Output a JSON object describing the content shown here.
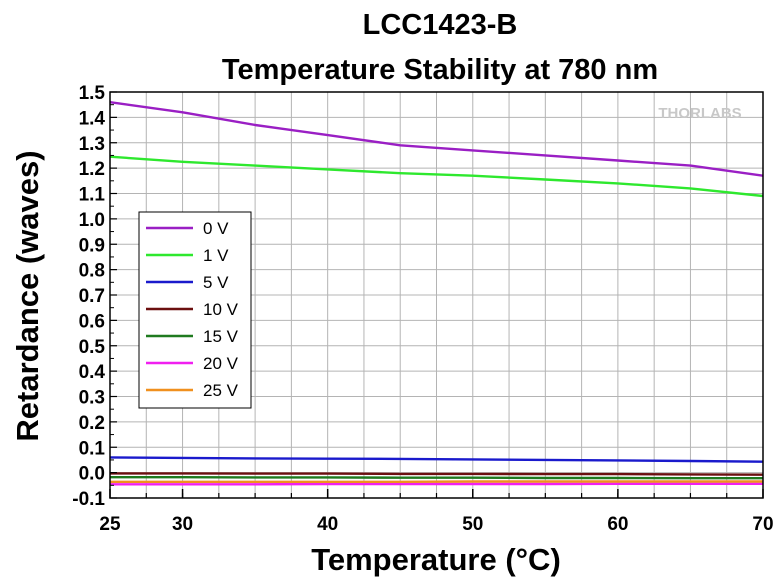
{
  "chart_data": {
    "type": "line",
    "title": "LCC1423-B",
    "subtitle": "Temperature Stability at 780 nm",
    "xlabel": "Temperature (°C)",
    "ylabel": "Retardance (waves)",
    "xlim": [
      25,
      70
    ],
    "ylim": [
      -0.1,
      1.5
    ],
    "x_ticks": [
      25,
      30,
      40,
      50,
      60,
      70
    ],
    "x_minor_step": 2.5,
    "y_ticks": [
      -0.1,
      0.0,
      0.1,
      0.2,
      0.3,
      0.4,
      0.5,
      0.6,
      0.7,
      0.8,
      0.9,
      1.0,
      1.1,
      1.2,
      1.3,
      1.4,
      1.5
    ],
    "y_tick_labels": [
      "-0.1",
      "0.0",
      "0.1",
      "0.2",
      "0.3",
      "0.4",
      "0.5",
      "0.6",
      "0.7",
      "0.8",
      "0.9",
      "1.0",
      "1.1",
      "1.2",
      "1.3",
      "1.4",
      "1.5"
    ],
    "grid": true,
    "legend_position": "left",
    "watermark": "THORLABS",
    "series": [
      {
        "name": "0 V",
        "color": "#9a1fc4",
        "x": [
          25,
          30,
          35,
          40,
          45,
          50,
          55,
          60,
          65,
          70
        ],
        "y": [
          1.46,
          1.42,
          1.37,
          1.33,
          1.29,
          1.27,
          1.25,
          1.23,
          1.21,
          1.17
        ]
      },
      {
        "name": "1 V",
        "color": "#2ee82e",
        "x": [
          25,
          30,
          35,
          40,
          45,
          50,
          55,
          60,
          65,
          70
        ],
        "y": [
          1.245,
          1.225,
          1.21,
          1.195,
          1.18,
          1.17,
          1.155,
          1.14,
          1.12,
          1.09
        ]
      },
      {
        "name": "5 V",
        "color": "#1a1acc",
        "x": [
          25,
          30,
          35,
          40,
          45,
          50,
          55,
          60,
          65,
          70
        ],
        "y": [
          0.06,
          0.058,
          0.056,
          0.055,
          0.054,
          0.052,
          0.05,
          0.048,
          0.046,
          0.043
        ]
      },
      {
        "name": "10 V",
        "color": "#6b0f0f",
        "x": [
          25,
          30,
          35,
          40,
          45,
          50,
          55,
          60,
          65,
          70
        ],
        "y": [
          -0.003,
          -0.003,
          -0.004,
          -0.004,
          -0.005,
          -0.005,
          -0.006,
          -0.006,
          -0.007,
          -0.008
        ]
      },
      {
        "name": "15 V",
        "color": "#1f7a1f",
        "x": [
          25,
          30,
          35,
          40,
          45,
          50,
          55,
          60,
          65,
          70
        ],
        "y": [
          -0.018,
          -0.018,
          -0.019,
          -0.019,
          -0.02,
          -0.02,
          -0.021,
          -0.021,
          -0.022,
          -0.022
        ]
      },
      {
        "name": "20 V",
        "color": "#f020f0",
        "x": [
          25,
          30,
          35,
          40,
          45,
          50,
          55,
          60,
          65,
          70
        ],
        "y": [
          -0.046,
          -0.046,
          -0.046,
          -0.045,
          -0.045,
          -0.045,
          -0.045,
          -0.044,
          -0.044,
          -0.044
        ]
      },
      {
        "name": "25 V",
        "color": "#f0901e",
        "x": [
          25,
          30,
          35,
          40,
          45,
          50,
          55,
          60,
          65,
          70
        ],
        "y": [
          -0.036,
          -0.036,
          -0.036,
          -0.036,
          -0.036,
          -0.035,
          -0.035,
          -0.035,
          -0.035,
          -0.035
        ]
      }
    ]
  }
}
